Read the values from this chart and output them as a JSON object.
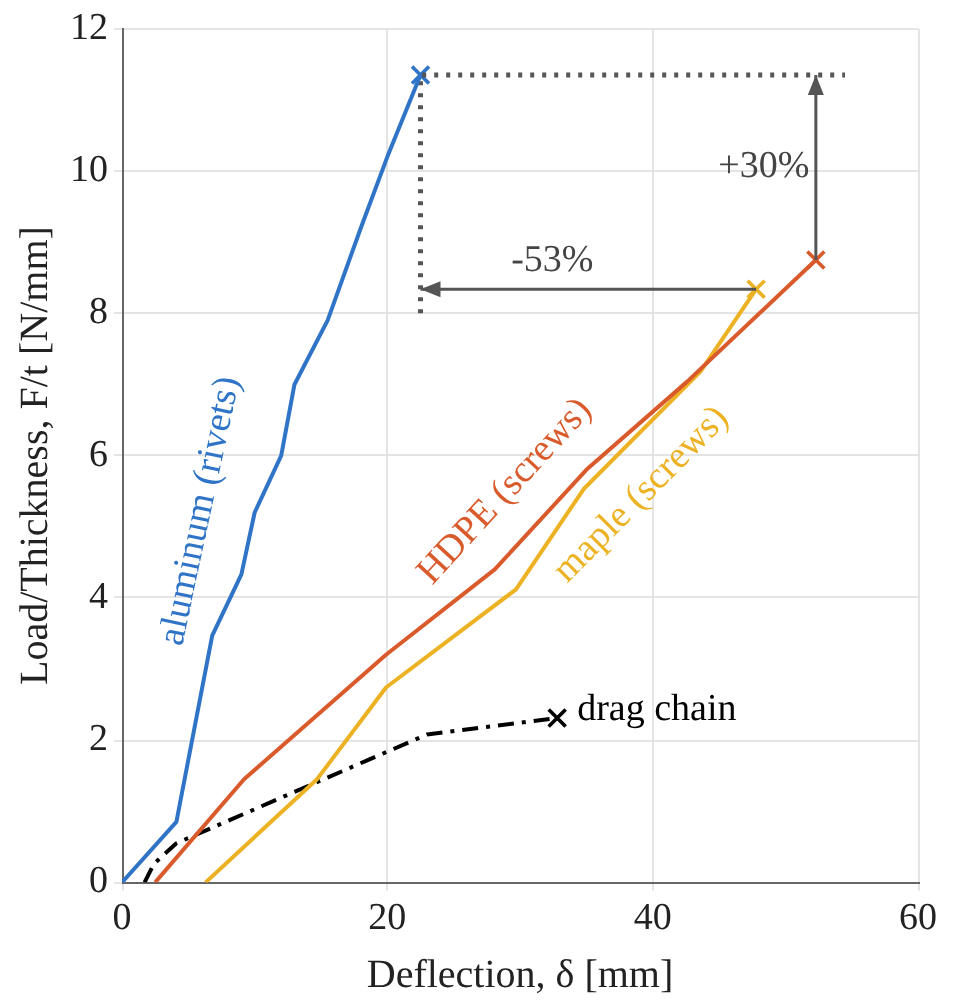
{
  "chart_data": {
    "type": "line",
    "xlabel": "Deflection, δ [mm]",
    "ylabel": "Load/Thickness, F/t [N/mm]",
    "xlim": [
      0,
      60
    ],
    "xticks": [
      0,
      20,
      40,
      60
    ],
    "ylim": [
      0,
      12
    ],
    "yticks": [
      0,
      2,
      4,
      6,
      8,
      10,
      12
    ],
    "grid": true,
    "legend": false,
    "series": [
      {
        "name": "aluminum (rivets)",
        "color": "#2f74c6",
        "line_style": "solid",
        "x": [
          0,
          4.1,
          6.8,
          9,
          10,
          12,
          13,
          15.5,
          18,
          20,
          22.5
        ],
        "values": [
          0,
          0.85,
          3.47,
          4.33,
          5.2,
          6.0,
          7.0,
          7.9,
          9.2,
          10.2,
          11.35
        ]
      },
      {
        "name": "HDPE (screws)",
        "color": "#d95a2b",
        "line_style": "solid",
        "x": [
          2.5,
          9.2,
          19.9,
          28.1,
          35,
          42.6,
          52.3
        ],
        "values": [
          0,
          1.45,
          3.2,
          4.4,
          5.8,
          7.04,
          8.75
        ]
      },
      {
        "name": "maple (screws)",
        "color": "#ecb223",
        "line_style": "solid",
        "x": [
          6.3,
          14.7,
          19.9,
          29.7,
          34.8,
          43.6,
          47.8
        ],
        "values": [
          0,
          1.45,
          2.74,
          4.12,
          5.53,
          7.18,
          8.34
        ]
      },
      {
        "name": "drag chain",
        "color": "#000000",
        "line_style": "dashed",
        "x": [
          1.7,
          2.4,
          4.1,
          14.7,
          23,
          32.8
        ],
        "values": [
          0,
          0.26,
          0.55,
          1.41,
          2.08,
          2.31
        ]
      },
      {
        "type": "line",
        "color": "#555555",
        "line_style": "dotted",
        "x": [
          22.5,
          22.5,
          54.5
        ],
        "values": [
          8.0,
          11.35,
          11.35
        ]
      },
      {
        "type": "scatter",
        "marker": "cross",
        "colors": [
          "#2f74c6",
          "#d95a2b",
          "#ecb223",
          "#000000"
        ],
        "x": [
          22.5,
          52.3,
          47.8,
          32.8
        ],
        "values": [
          11.35,
          8.75,
          8.34,
          2.31
        ]
      }
    ],
    "annotations": [
      "+30%",
      "-53%"
    ]
  }
}
